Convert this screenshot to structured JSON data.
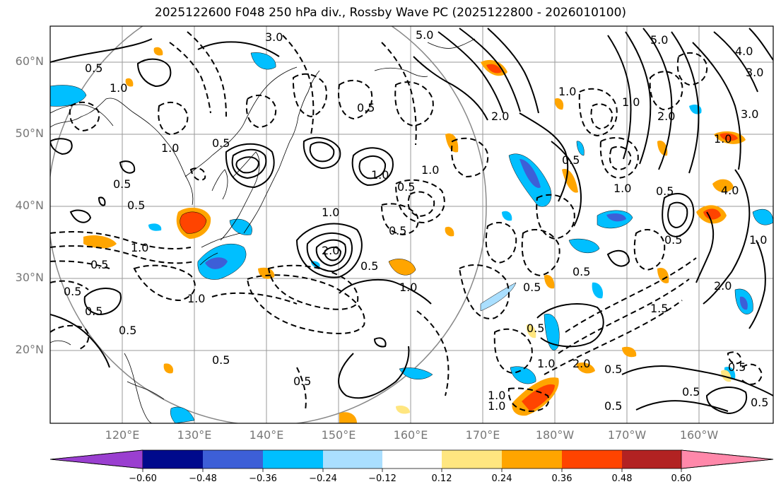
{
  "title": "2025122600 F048 250 hPa div., Rossby Wave PC (2025122800 - 2026010100)",
  "lat_labels": [
    "60°N",
    "50°N",
    "40°N",
    "30°N",
    "20°N"
  ],
  "lon_labels": [
    "120°E",
    "130°E",
    "140°E",
    "150°E",
    "160°E",
    "170°E",
    "180°W",
    "170°W",
    "160°W"
  ],
  "colorbar": {
    "ticks": [
      "−0.60",
      "−0.48",
      "−0.36",
      "−0.24",
      "−0.12",
      "0.12",
      "0.24",
      "0.36",
      "0.48",
      "0.60"
    ],
    "colors": [
      "#9a3fd0",
      "#000a8c",
      "#3d5fd7",
      "#00bfff",
      "#aadfff",
      "#ffffff",
      "#ffe680",
      "#ffa500",
      "#ff4400",
      "#b22222",
      "#ff88aa"
    ]
  },
  "contour_labels": [
    {
      "text": "3.0"
    },
    {
      "text": "5.0"
    },
    {
      "text": "0.5"
    },
    {
      "text": "1.0"
    },
    {
      "text": "0.5"
    },
    {
      "text": "1.0"
    },
    {
      "text": "0.5"
    },
    {
      "text": "1.0"
    },
    {
      "text": "0.5"
    },
    {
      "text": "1.0"
    },
    {
      "text": "0.5"
    },
    {
      "text": "0.5"
    },
    {
      "text": "0.5"
    },
    {
      "text": "1.0"
    },
    {
      "text": "0.5"
    },
    {
      "text": "0.5"
    },
    {
      "text": "1.0"
    },
    {
      "text": "1.0"
    },
    {
      "text": "2.0"
    },
    {
      "text": "0.5"
    },
    {
      "text": "1.0"
    },
    {
      "text": "0.5"
    },
    {
      "text": "0.5"
    },
    {
      "text": "1.0"
    },
    {
      "text": "2.0"
    },
    {
      "text": "0.5"
    },
    {
      "text": "1.0"
    },
    {
      "text": "2.0"
    },
    {
      "text": "3.0"
    },
    {
      "text": "4.0"
    },
    {
      "text": "3.0"
    },
    {
      "text": "1.0"
    },
    {
      "text": "4.0"
    },
    {
      "text": "0.5"
    },
    {
      "text": "1.0"
    },
    {
      "text": "0.5"
    },
    {
      "text": "1.0"
    },
    {
      "text": "0.5"
    },
    {
      "text": "2.0"
    },
    {
      "text": "1.5"
    },
    {
      "text": "0.5"
    },
    {
      "text": "0.5"
    },
    {
      "text": "1.0"
    },
    {
      "text": "2.0"
    },
    {
      "text": "0.5"
    },
    {
      "text": "0.5"
    },
    {
      "text": "0.5"
    },
    {
      "text": "0.5"
    },
    {
      "text": "0.5"
    },
    {
      "text": "1.0"
    },
    {
      "text": "0.5"
    },
    {
      "text": "1.0"
    },
    {
      "text": "5.0"
    },
    {
      "text": "0.5"
    }
  ]
}
